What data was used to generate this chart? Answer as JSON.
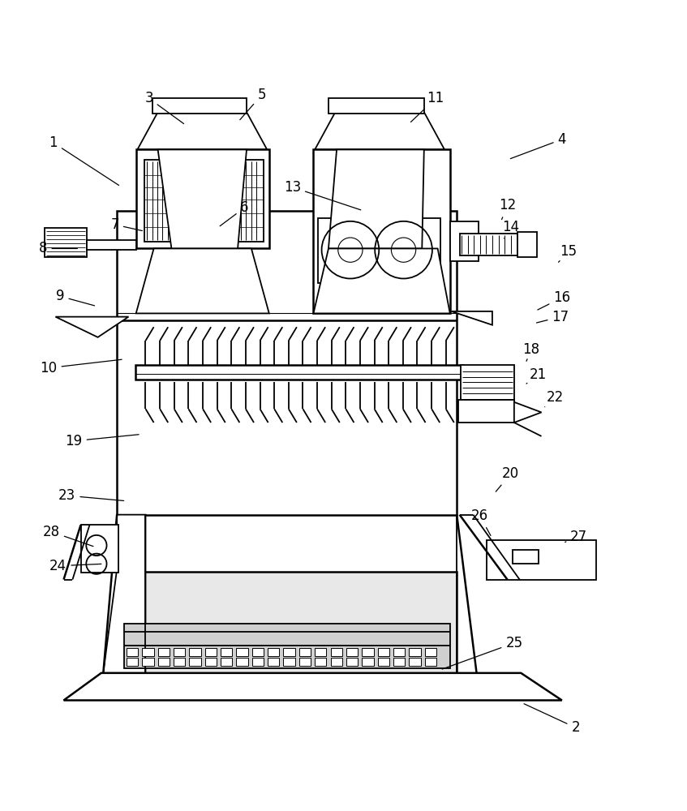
{
  "bg_color": "#ffffff",
  "lc": "#000000",
  "lw": 1.3,
  "lw2": 1.8,
  "fig_w": 8.47,
  "fig_h": 10.0,
  "labels": {
    "1": [
      0.075,
      0.885,
      0.175,
      0.82
    ],
    "2": [
      0.84,
      0.028,
      0.76,
      0.065
    ],
    "3": [
      0.215,
      0.95,
      0.27,
      0.91
    ],
    "4": [
      0.82,
      0.89,
      0.74,
      0.86
    ],
    "5": [
      0.38,
      0.955,
      0.345,
      0.915
    ],
    "6": [
      0.355,
      0.79,
      0.315,
      0.76
    ],
    "7": [
      0.165,
      0.765,
      0.21,
      0.755
    ],
    "8": [
      0.06,
      0.73,
      0.115,
      0.73
    ],
    "9": [
      0.085,
      0.66,
      0.14,
      0.645
    ],
    "10": [
      0.068,
      0.555,
      0.18,
      0.568
    ],
    "11": [
      0.635,
      0.95,
      0.595,
      0.912
    ],
    "12": [
      0.74,
      0.793,
      0.73,
      0.768
    ],
    "13": [
      0.425,
      0.82,
      0.53,
      0.785
    ],
    "14": [
      0.745,
      0.762,
      0.735,
      0.745
    ],
    "15": [
      0.83,
      0.726,
      0.815,
      0.71
    ],
    "16": [
      0.82,
      0.658,
      0.78,
      0.638
    ],
    "17": [
      0.818,
      0.63,
      0.778,
      0.62
    ],
    "18": [
      0.775,
      0.582,
      0.768,
      0.565
    ],
    "19": [
      0.105,
      0.448,
      0.205,
      0.458
    ],
    "20": [
      0.745,
      0.4,
      0.72,
      0.37
    ],
    "21": [
      0.785,
      0.545,
      0.768,
      0.532
    ],
    "22": [
      0.81,
      0.512,
      0.795,
      0.498
    ],
    "23": [
      0.095,
      0.368,
      0.183,
      0.36
    ],
    "24": [
      0.082,
      0.265,
      0.15,
      0.268
    ],
    "25": [
      0.75,
      0.152,
      0.64,
      0.112
    ],
    "26": [
      0.7,
      0.338,
      0.718,
      0.305
    ],
    "27": [
      0.845,
      0.308,
      0.82,
      0.298
    ],
    "28": [
      0.072,
      0.315,
      0.138,
      0.292
    ]
  }
}
